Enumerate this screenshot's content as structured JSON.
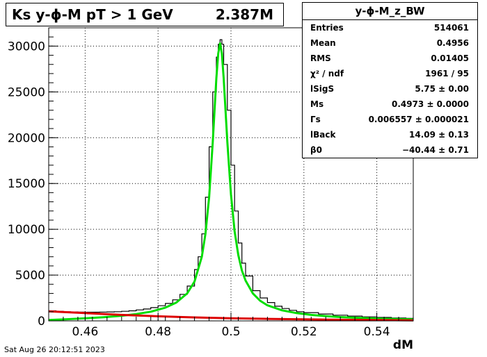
{
  "title": {
    "text": "Ks y-ϕ-M pT > 1 GeV",
    "entries": "2.387M"
  },
  "stats": {
    "name": "y-ϕ-M_z_BW",
    "rows": [
      {
        "key": "Entries",
        "value": "514061"
      },
      {
        "key": "Mean",
        "value": "0.4956"
      },
      {
        "key": "RMS",
        "value": "0.01405"
      },
      {
        "key": "χ² / ndf",
        "value": "1961 / 95"
      },
      {
        "key": "lSigS",
        "value": "5.75 ± 0.00"
      },
      {
        "key": "Ms",
        "value": "0.4973 ± 0.0000"
      },
      {
        "key": "Γs",
        "value": "0.006557 ± 0.000021"
      },
      {
        "key": "lBack",
        "value": "14.09 ± 0.13"
      },
      {
        "key": "β0",
        "value": "−40.44 ± 0.71"
      }
    ]
  },
  "date": "Sat Aug 26 20:12:51 2023",
  "chart_data": {
    "type": "line",
    "xlabel": "dM",
    "ylabel": "",
    "xlim": [
      0.45,
      0.55
    ],
    "ylim": [
      0,
      32000
    ],
    "xticks": [
      "0.46",
      "0.48",
      "0.5",
      "0.52",
      "0.54"
    ],
    "yticks": [
      "0",
      "5000",
      "10000",
      "15000",
      "20000",
      "25000",
      "30000"
    ],
    "grid": true,
    "series": [
      {
        "color": "#000000",
        "style": "histogram",
        "x": [
          0.45,
          0.452,
          0.454,
          0.456,
          0.458,
          0.46,
          0.462,
          0.464,
          0.466,
          0.468,
          0.47,
          0.472,
          0.474,
          0.476,
          0.478,
          0.48,
          0.482,
          0.484,
          0.486,
          0.488,
          0.49,
          0.491,
          0.492,
          0.493,
          0.494,
          0.495,
          0.496,
          0.4965,
          0.497,
          0.4975,
          0.498,
          0.499,
          0.5,
          0.501,
          0.502,
          0.503,
          0.504,
          0.506,
          0.508,
          0.51,
          0.512,
          0.514,
          0.516,
          0.518,
          0.52,
          0.524,
          0.528,
          0.532,
          0.536,
          0.54,
          0.544,
          0.548,
          0.55
        ],
        "y": [
          1100,
          1050,
          1000,
          980,
          960,
          950,
          950,
          960,
          980,
          1000,
          1050,
          1100,
          1200,
          1300,
          1450,
          1650,
          1900,
          2300,
          2900,
          3800,
          5600,
          7000,
          9500,
          13500,
          19000,
          25000,
          28800,
          30200,
          30700,
          30200,
          28000,
          23000,
          17000,
          12000,
          8500,
          6300,
          4900,
          3300,
          2500,
          2000,
          1600,
          1350,
          1150,
          1000,
          900,
          750,
          620,
          520,
          440,
          380,
          320,
          270,
          250
        ]
      },
      {
        "color": "#00dd00",
        "style": "line",
        "x": [
          0.45,
          0.455,
          0.46,
          0.465,
          0.47,
          0.474,
          0.478,
          0.482,
          0.485,
          0.488,
          0.49,
          0.492,
          0.493,
          0.494,
          0.495,
          0.496,
          0.4965,
          0.497,
          0.4975,
          0.498,
          0.499,
          0.5,
          0.501,
          0.502,
          0.503,
          0.504,
          0.506,
          0.508,
          0.51,
          0.514,
          0.518,
          0.522,
          0.526,
          0.53,
          0.535,
          0.54,
          0.545,
          0.55
        ],
        "y": [
          100,
          180,
          280,
          400,
          560,
          740,
          1000,
          1450,
          2000,
          3000,
          4300,
          7000,
          9500,
          13500,
          19500,
          26500,
          29200,
          30300,
          29200,
          26500,
          19500,
          13800,
          9800,
          7200,
          5500,
          4400,
          3000,
          2200,
          1700,
          1150,
          850,
          650,
          520,
          420,
          330,
          260,
          210,
          170
        ]
      },
      {
        "color": "#dd0000",
        "style": "line",
        "x": [
          0.45,
          0.46,
          0.47,
          0.48,
          0.49,
          0.5,
          0.51,
          0.52,
          0.53,
          0.54,
          0.55
        ],
        "y": [
          1050,
          850,
          650,
          500,
          380,
          290,
          220,
          170,
          120,
          90,
          60
        ]
      }
    ]
  }
}
